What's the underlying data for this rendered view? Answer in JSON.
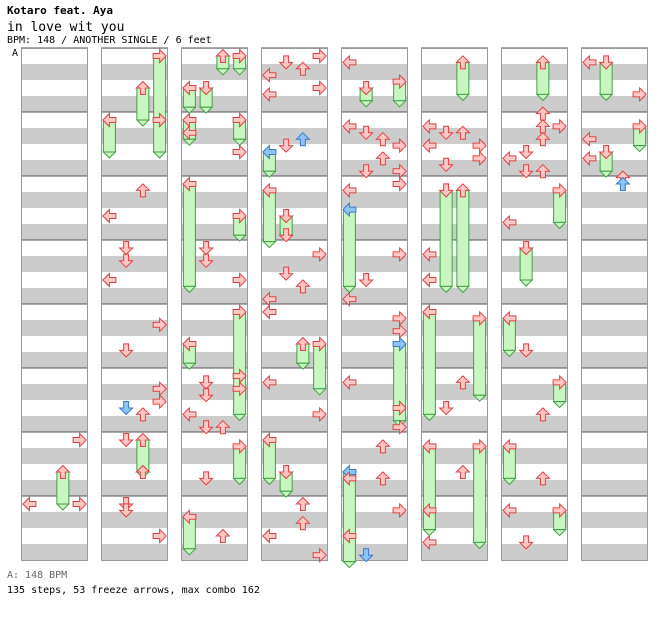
{
  "song": {
    "artist": "Kotaro feat. Aya",
    "title": "in love wit you",
    "meta": "BPM: 148 / ANOTHER SINGLE / 6 feet",
    "bpm_marker": "A"
  },
  "footer": {
    "bpm_legend": "A: 148 BPM",
    "stats": "135 steps, 53 freeze arrows, max combo 162"
  },
  "colors": {
    "arrow_fill": "#ffc8c8",
    "arrow_stroke": "#e04040",
    "freeze_fill": "#c8f5c0",
    "freeze_stroke": "#40a040",
    "shock_fill": "#8ec4f5",
    "shock_stroke": "#3a78c8",
    "stripe": "#cccccc",
    "border": "#999999"
  },
  "chart_data": {
    "type": "step-chart",
    "columns": 8,
    "measures_per_column": 8,
    "lanes": [
      "left",
      "down",
      "up",
      "right"
    ],
    "beats_per_measure": 4,
    "steps": [
      [
        0,
        6.0,
        3,
        0,
        1
      ],
      [
        0,
        7.0,
        0,
        0,
        1
      ],
      [
        0,
        7.0,
        3,
        0,
        1
      ],
      [
        0,
        6.5,
        2,
        0.5,
        1
      ],
      [
        1,
        0.0,
        3,
        1.0,
        1
      ],
      [
        1,
        0.5,
        2,
        0.5,
        1
      ],
      [
        1,
        1.0,
        0,
        0.5,
        1
      ],
      [
        1,
        1.0,
        3,
        0.5,
        1
      ],
      [
        1,
        2.1,
        2,
        0,
        1
      ],
      [
        1,
        2.5,
        0,
        0,
        1
      ],
      [
        1,
        3.0,
        1,
        0,
        1
      ],
      [
        1,
        3.2,
        1,
        0,
        1
      ],
      [
        1,
        3.5,
        0,
        0,
        1
      ],
      [
        1,
        4.2,
        3,
        0,
        1
      ],
      [
        1,
        4.6,
        1,
        0,
        1
      ],
      [
        1,
        5.2,
        3,
        0,
        1
      ],
      [
        1,
        5.4,
        3,
        0,
        1
      ],
      [
        1,
        5.5,
        1,
        0,
        2
      ],
      [
        1,
        5.6,
        2,
        0,
        1
      ],
      [
        1,
        6.0,
        1,
        0,
        1
      ],
      [
        1,
        6.0,
        2,
        0.5,
        1
      ],
      [
        1,
        6.5,
        2,
        0,
        1
      ],
      [
        1,
        7.0,
        1,
        0,
        1
      ],
      [
        1,
        7.1,
        1,
        0,
        1
      ],
      [
        1,
        7.5,
        3,
        0,
        1
      ],
      [
        2,
        0.0,
        2,
        0.2,
        1
      ],
      [
        2,
        0.0,
        3,
        0.2,
        1
      ],
      [
        2,
        0.5,
        0,
        0.3,
        1
      ],
      [
        2,
        0.5,
        1,
        0.3,
        1
      ],
      [
        2,
        1.0,
        0,
        0.3,
        1
      ],
      [
        2,
        1.0,
        3,
        0.3,
        1
      ],
      [
        2,
        1.2,
        0,
        0,
        1
      ],
      [
        2,
        1.5,
        3,
        0,
        1
      ],
      [
        2,
        2.0,
        0,
        1.6,
        1
      ],
      [
        2,
        2.5,
        3,
        0.3,
        1
      ],
      [
        2,
        3.0,
        1,
        0,
        1
      ],
      [
        2,
        3.2,
        1,
        0,
        1
      ],
      [
        2,
        3.5,
        3,
        0,
        1
      ],
      [
        2,
        4.0,
        3,
        1.6,
        1
      ],
      [
        2,
        4.5,
        0,
        0.3,
        1
      ],
      [
        2,
        5.0,
        3,
        0,
        1
      ],
      [
        2,
        5.2,
        3,
        0,
        1
      ],
      [
        2,
        5.1,
        1,
        0,
        1
      ],
      [
        2,
        5.3,
        1,
        0,
        1
      ],
      [
        2,
        5.6,
        0,
        0,
        1
      ],
      [
        2,
        5.8,
        1,
        0,
        1
      ],
      [
        2,
        5.8,
        2,
        0,
        1
      ],
      [
        2,
        6.1,
        3,
        0.5,
        1
      ],
      [
        2,
        6.6,
        1,
        0,
        1
      ],
      [
        2,
        7.2,
        0,
        0.5,
        1
      ],
      [
        2,
        7.5,
        2,
        0,
        1
      ],
      [
        3,
        0.0,
        3,
        0,
        1
      ],
      [
        3,
        0.1,
        1,
        0,
        1
      ],
      [
        3,
        0.2,
        2,
        0,
        1
      ],
      [
        3,
        0.3,
        0,
        0,
        1
      ],
      [
        3,
        0.5,
        3,
        0,
        1
      ],
      [
        3,
        0.6,
        0,
        0,
        1
      ],
      [
        3,
        1.3,
        2,
        0,
        2
      ],
      [
        3,
        1.4,
        1,
        0,
        1
      ],
      [
        3,
        1.5,
        0,
        0.3,
        2
      ],
      [
        3,
        2.1,
        0,
        0.8,
        1
      ],
      [
        3,
        2.5,
        1,
        0.3,
        1
      ],
      [
        3,
        2.8,
        1,
        0,
        1
      ],
      [
        3,
        3.1,
        3,
        0,
        1
      ],
      [
        3,
        3.4,
        1,
        0,
        1
      ],
      [
        3,
        3.6,
        2,
        0,
        1
      ],
      [
        3,
        3.8,
        0,
        0,
        1
      ],
      [
        3,
        4.0,
        0,
        0,
        1
      ],
      [
        3,
        4.5,
        2,
        0.3,
        1
      ],
      [
        3,
        4.5,
        3,
        0.7,
        1
      ],
      [
        3,
        5.1,
        0,
        0,
        1
      ],
      [
        3,
        5.6,
        3,
        0,
        1
      ],
      [
        3,
        6.0,
        0,
        0.6,
        1
      ],
      [
        3,
        6.5,
        1,
        0.3,
        1
      ],
      [
        3,
        7.0,
        2,
        0,
        1
      ],
      [
        3,
        7.3,
        2,
        0,
        1
      ],
      [
        3,
        7.5,
        0,
        0,
        1
      ],
      [
        3,
        7.8,
        3,
        0,
        1
      ],
      [
        4,
        0.1,
        0,
        0,
        1
      ],
      [
        4,
        0.4,
        3,
        0.3,
        1
      ],
      [
        4,
        0.5,
        1,
        0.2,
        1
      ],
      [
        4,
        1.1,
        0,
        0,
        1
      ],
      [
        4,
        1.2,
        1,
        0,
        1
      ],
      [
        4,
        1.3,
        2,
        0,
        1
      ],
      [
        4,
        1.4,
        3,
        0,
        1
      ],
      [
        4,
        1.6,
        2,
        0,
        1
      ],
      [
        4,
        1.8,
        1,
        0,
        1
      ],
      [
        4,
        1.8,
        3,
        0,
        1
      ],
      [
        4,
        2.0,
        3,
        0,
        1
      ],
      [
        4,
        2.1,
        0,
        0,
        1
      ],
      [
        4,
        2.4,
        0,
        1.2,
        2
      ],
      [
        4,
        3.1,
        3,
        0,
        1
      ],
      [
        4,
        3.5,
        1,
        0,
        1
      ],
      [
        4,
        3.8,
        0,
        0,
        1
      ],
      [
        4,
        4.1,
        3,
        0,
        1
      ],
      [
        4,
        4.3,
        3,
        0,
        1
      ],
      [
        4,
        4.5,
        3,
        1.2,
        2
      ],
      [
        4,
        5.1,
        0,
        0,
        1
      ],
      [
        4,
        5.5,
        3,
        0,
        1
      ],
      [
        4,
        5.8,
        3,
        0,
        1
      ],
      [
        4,
        6.1,
        2,
        0,
        1
      ],
      [
        4,
        6.5,
        0,
        1.4,
        2
      ],
      [
        4,
        6.6,
        2,
        0,
        1
      ],
      [
        4,
        6.6,
        0,
        0,
        1
      ],
      [
        4,
        7.1,
        3,
        0,
        1
      ],
      [
        4,
        7.5,
        0,
        0,
        1
      ],
      [
        4,
        7.8,
        1,
        0,
        2
      ],
      [
        5,
        0.1,
        2,
        0.5,
        1
      ],
      [
        5,
        1.1,
        0,
        0,
        1
      ],
      [
        5,
        1.2,
        1,
        0,
        1
      ],
      [
        5,
        1.2,
        2,
        0,
        1
      ],
      [
        5,
        1.4,
        0,
        0,
        1
      ],
      [
        5,
        1.4,
        3,
        0,
        1
      ],
      [
        5,
        1.6,
        3,
        0,
        1
      ],
      [
        5,
        1.7,
        1,
        0,
        1
      ],
      [
        5,
        2.1,
        2,
        1.5,
        1
      ],
      [
        5,
        2.1,
        1,
        1.5,
        1
      ],
      [
        5,
        3.1,
        0,
        0,
        1
      ],
      [
        5,
        3.5,
        0,
        0,
        1
      ],
      [
        5,
        4.0,
        0,
        1.6,
        1
      ],
      [
        5,
        4.1,
        3,
        1.2,
        1
      ],
      [
        5,
        5.1,
        2,
        0,
        1
      ],
      [
        5,
        5.5,
        1,
        0,
        1
      ],
      [
        5,
        6.1,
        0,
        1.3,
        1
      ],
      [
        5,
        6.1,
        3,
        1.5,
        1
      ],
      [
        5,
        6.5,
        2,
        0,
        1
      ],
      [
        5,
        7.1,
        0,
        0,
        1
      ],
      [
        5,
        7.6,
        0,
        0,
        1
      ],
      [
        6,
        0.1,
        2,
        0.5,
        1
      ],
      [
        6,
        0.9,
        2,
        0,
        1
      ],
      [
        6,
        1.1,
        2,
        0,
        1
      ],
      [
        6,
        1.1,
        3,
        0,
        1
      ],
      [
        6,
        1.3,
        2,
        0,
        1
      ],
      [
        6,
        1.5,
        1,
        0,
        1
      ],
      [
        6,
        1.6,
        0,
        0,
        1
      ],
      [
        6,
        1.8,
        2,
        0,
        1
      ],
      [
        6,
        1.8,
        1,
        0,
        1
      ],
      [
        6,
        2.1,
        3,
        0.5,
        1
      ],
      [
        6,
        2.6,
        0,
        0,
        1
      ],
      [
        6,
        3.0,
        1,
        0.5,
        1
      ],
      [
        6,
        4.1,
        0,
        0.5,
        1
      ],
      [
        6,
        4.6,
        1,
        0,
        1
      ],
      [
        6,
        5.1,
        3,
        0.3,
        1
      ],
      [
        6,
        5.6,
        2,
        0,
        1
      ],
      [
        6,
        6.1,
        0,
        0.5,
        1
      ],
      [
        6,
        6.6,
        2,
        0,
        1
      ],
      [
        6,
        7.1,
        0,
        0,
        1
      ],
      [
        6,
        7.1,
        3,
        0.3,
        1
      ],
      [
        6,
        7.6,
        1,
        0,
        1
      ],
      [
        7,
        0.1,
        0,
        0,
        1
      ],
      [
        7,
        0.1,
        1,
        0.5,
        1
      ],
      [
        7,
        0.6,
        3,
        0,
        1
      ],
      [
        7,
        1.1,
        3,
        0.3,
        1
      ],
      [
        7,
        1.3,
        0,
        0,
        1
      ],
      [
        7,
        1.5,
        1,
        0.3,
        1
      ],
      [
        7,
        1.6,
        0,
        0,
        1
      ],
      [
        7,
        1.9,
        2,
        0,
        1
      ],
      [
        7,
        2.0,
        2,
        0,
        2
      ]
    ]
  }
}
